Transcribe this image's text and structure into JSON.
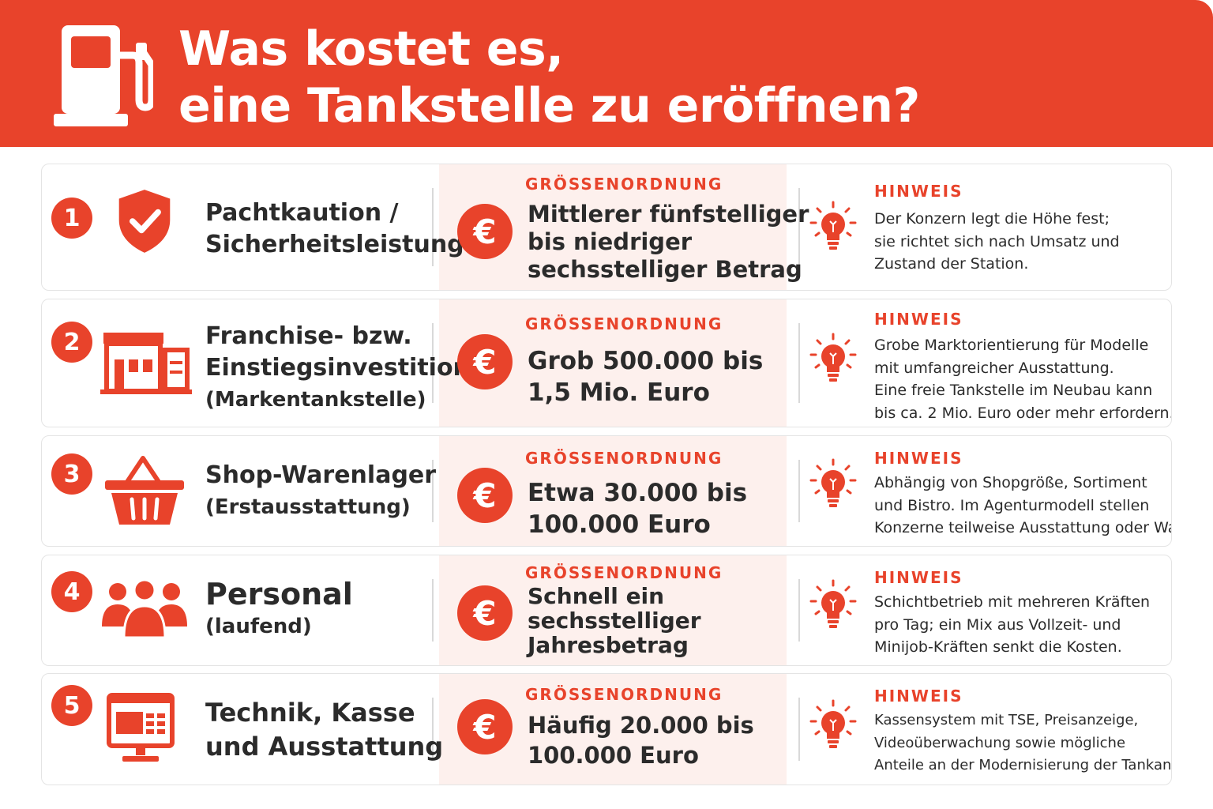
{
  "header": {
    "title_line1": "Was kostet es,",
    "title_line2": "eine Tankstelle zu eröffnen?",
    "icon": "fuel-pump-icon",
    "background_color": "#e8432b"
  },
  "accent_color": "#e8432b",
  "rows": [
    {
      "number": "1",
      "icon": "shield-check-icon",
      "category_lines": [
        "Pachtkaution /",
        "Sicherheitsleistung"
      ],
      "category_sub": "",
      "magnitude_label": "GRÖSSENORDNUNG",
      "magnitude_lines": [
        "Mittlerer fünfstelliger",
        "bis niedriger",
        "sechsstelliger Betrag"
      ],
      "note_label": "HINWEIS",
      "note_lines": [
        "Der Konzern legt die Höhe fest;",
        "sie richtet sich nach Umsatz und",
        "Zustand der Station."
      ]
    },
    {
      "number": "2",
      "icon": "gas-station-building-icon",
      "category_lines": [
        "Franchise- bzw.",
        "Einstiegsinvestition"
      ],
      "category_sub": "(Markentankstelle)",
      "magnitude_label": "GRÖSSENORDNUNG",
      "magnitude_lines": [
        "Grob 500.000 bis",
        "1,5 Mio. Euro"
      ],
      "note_label": "HINWEIS",
      "note_lines": [
        "Grobe Marktorientierung für Modelle",
        "mit umfangreicher Ausstattung.",
        "Eine freie Tankstelle im Neubau kann",
        "bis ca. 2 Mio. Euro oder mehr erfordern."
      ]
    },
    {
      "number": "3",
      "icon": "shopping-basket-icon",
      "category_lines": [
        "Shop-Warenlager"
      ],
      "category_sub": "(Erstausstattung)",
      "magnitude_label": "GRÖSSENORDNUNG",
      "magnitude_lines": [
        "Etwa 30.000 bis",
        "100.000 Euro"
      ],
      "note_label": "HINWEIS",
      "note_lines": [
        "Abhängig von Shopgröße, Sortiment",
        "und Bistro. Im Agenturmodell stellen",
        "Konzerne teilweise Ausstattung oder Waren."
      ]
    },
    {
      "number": "4",
      "icon": "people-group-icon",
      "category_lines": [
        "Personal"
      ],
      "category_sub": "(laufend)",
      "magnitude_label": "GRÖSSENORDNUNG",
      "magnitude_lines": [
        "Schnell ein",
        "sechsstelliger",
        "Jahresbetrag"
      ],
      "note_label": "HINWEIS",
      "note_lines": [
        "Schichtbetrieb mit mehreren Kräften",
        "pro Tag; ein Mix aus Vollzeit- und",
        "Minijob-Kräften senkt die Kosten."
      ]
    },
    {
      "number": "5",
      "icon": "monitor-pos-icon",
      "category_lines": [
        "Technik, Kasse",
        "und Ausstattung"
      ],
      "category_sub": "",
      "magnitude_label": "GRÖSSENORDNUNG",
      "magnitude_lines": [
        "Häufig 20.000 bis",
        "100.000 Euro"
      ],
      "note_label": "HINWEIS",
      "note_lines": [
        "Kassensystem mit TSE, Preisanzeige,",
        "Videoüberwachung sowie mögliche",
        "Anteile an der Modernisierung der Tankanlagen."
      ]
    }
  ],
  "euro_symbol": "€"
}
